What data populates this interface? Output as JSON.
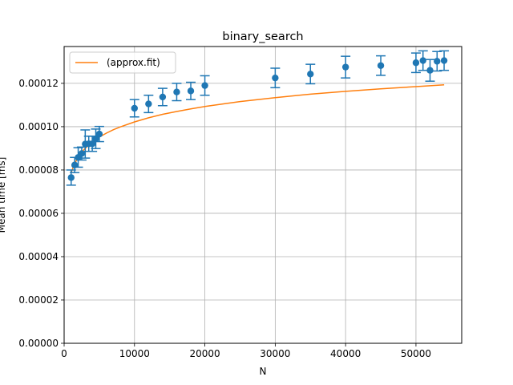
{
  "chart_data": {
    "type": "scatter",
    "title": "binary_search",
    "xlabel": "N",
    "ylabel": "Mean time [ms]",
    "xlim": [
      0,
      56500
    ],
    "ylim": [
      0,
      0.000137
    ],
    "grid": true,
    "legend_position": "top-left",
    "x_ticks": [
      0,
      10000,
      20000,
      30000,
      40000,
      50000
    ],
    "x_tick_labels": [
      "0",
      "10000",
      "20000",
      "30000",
      "40000",
      "50000"
    ],
    "y_ticks": [
      0,
      2e-05,
      4e-05,
      6e-05,
      8e-05,
      0.0001,
      0.00012
    ],
    "y_tick_labels": [
      "0.00000",
      "0.00002",
      "0.00004",
      "0.00006",
      "0.00008",
      "0.00010",
      "0.00012"
    ],
    "series": [
      {
        "kind": "errorbar",
        "color": "#1f77b4",
        "points": [
          {
            "x": 1000,
            "y": 7.65e-05,
            "err": 3.5e-06
          },
          {
            "x": 1500,
            "y": 8.23e-05,
            "err": 3.5e-06
          },
          {
            "x": 2000,
            "y": 8.58e-05,
            "err": 4.5e-06
          },
          {
            "x": 2500,
            "y": 8.76e-05,
            "err": 3e-06
          },
          {
            "x": 3000,
            "y": 9.2e-05,
            "err": 6.5e-06
          },
          {
            "x": 3500,
            "y": 9.21e-05,
            "err": 3.5e-06
          },
          {
            "x": 4000,
            "y": 9.21e-05,
            "err": 3.5e-06
          },
          {
            "x": 4500,
            "y": 9.44e-05,
            "err": 4.5e-06
          },
          {
            "x": 5000,
            "y": 9.66e-05,
            "err": 3.5e-06
          },
          {
            "x": 10000,
            "y": 0.0001085,
            "err": 4e-06
          },
          {
            "x": 12000,
            "y": 0.0001105,
            "err": 4e-06
          },
          {
            "x": 14000,
            "y": 0.0001137,
            "err": 4e-06
          },
          {
            "x": 16000,
            "y": 0.000116,
            "err": 4e-06
          },
          {
            "x": 18000,
            "y": 0.0001165,
            "err": 4e-06
          },
          {
            "x": 20000,
            "y": 0.000119,
            "err": 4.5e-06
          },
          {
            "x": 30000,
            "y": 0.0001225,
            "err": 4.5e-06
          },
          {
            "x": 35000,
            "y": 0.0001243,
            "err": 4.5e-06
          },
          {
            "x": 40000,
            "y": 0.0001275,
            "err": 5e-06
          },
          {
            "x": 45000,
            "y": 0.0001282,
            "err": 4.5e-06
          },
          {
            "x": 50000,
            "y": 0.0001295,
            "err": 4.5e-06
          },
          {
            "x": 51000,
            "y": 0.0001305,
            "err": 4.5e-06
          },
          {
            "x": 52000,
            "y": 0.000126,
            "err": 5e-06
          },
          {
            "x": 53000,
            "y": 0.0001302,
            "err": 4.5e-06
          },
          {
            "x": 54000,
            "y": 0.0001305,
            "err": 4.5e-06
          }
        ]
      },
      {
        "name": "(approx.fit)",
        "kind": "line",
        "color": "#ff7f0e",
        "x": [
          1000,
          1500,
          2000,
          2500,
          3000,
          4000,
          5000,
          6000,
          7000,
          8000,
          10000,
          12000,
          14000,
          16000,
          18000,
          20000,
          25000,
          30000,
          35000,
          40000,
          45000,
          50000,
          54000
        ],
        "y": [
          7.89e-05,
          8.3e-05,
          8.59e-05,
          8.82e-05,
          9e-05,
          9.29e-05,
          9.52e-05,
          9.7e-05,
          9.86e-05,
          9.99e-05,
          0.0001022,
          0.0001041,
          0.0001057,
          0.000107,
          0.0001082,
          0.0001093,
          0.0001116,
          0.0001134,
          0.000115,
          0.0001163,
          0.0001175,
          0.0001185,
          0.0001193
        ]
      }
    ]
  }
}
